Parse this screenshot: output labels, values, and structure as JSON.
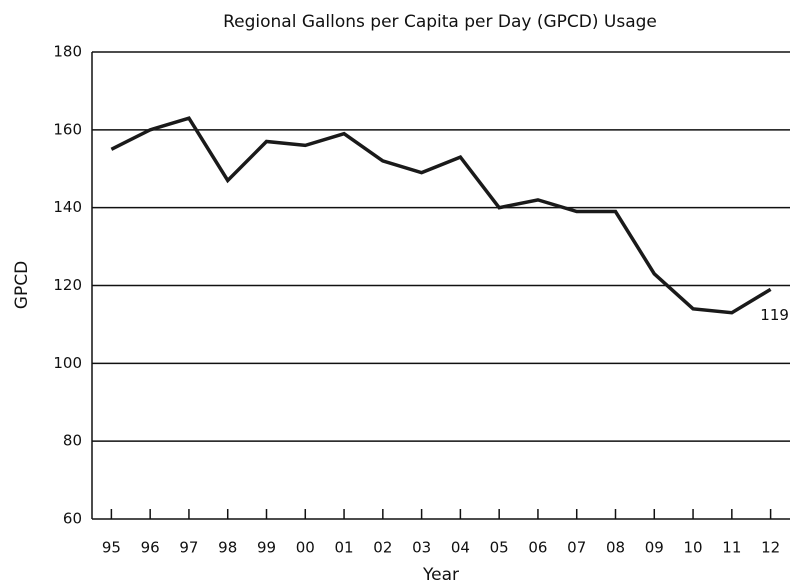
{
  "chart_data": {
    "type": "line",
    "title": "Regional Gallons per Capita per Day (GPCD) Usage",
    "x_label": "Year",
    "y_label": "GPCD",
    "categories": [
      "95",
      "96",
      "97",
      "98",
      "99",
      "00",
      "01",
      "02",
      "03",
      "04",
      "05",
      "06",
      "07",
      "08",
      "09",
      "10",
      "11",
      "12"
    ],
    "series": [
      {
        "name": "GPCD",
        "color": "#1a1a1a",
        "values": [
          155,
          160,
          163,
          147,
          157,
          156,
          159,
          152,
          149,
          153,
          140,
          142,
          139,
          139,
          123,
          114,
          113,
          119
        ]
      }
    ],
    "ylim": [
      60,
      180
    ],
    "yticks": [
      60,
      80,
      100,
      120,
      140,
      160,
      180
    ],
    "grid": true
  }
}
